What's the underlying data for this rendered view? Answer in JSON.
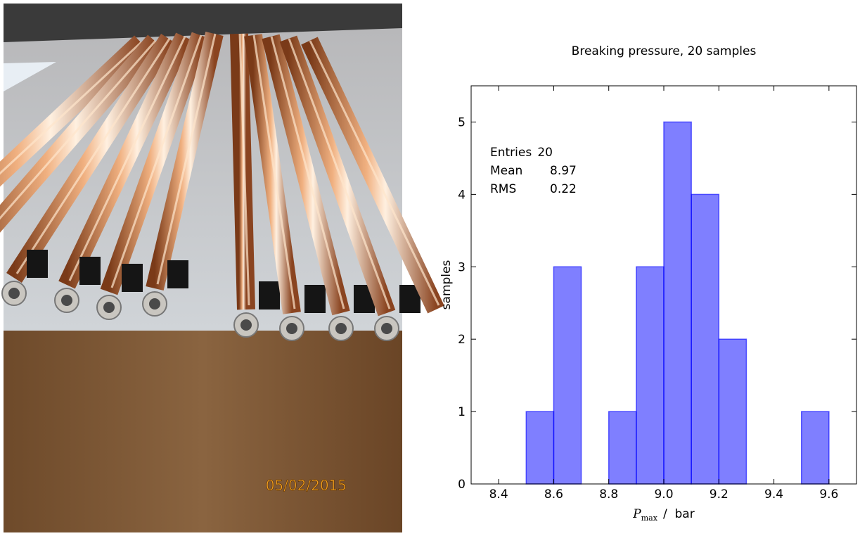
{
  "photo": {
    "date_stamp": "05/02/2015"
  },
  "chart_data": {
    "type": "histogram",
    "title": "Breaking pressure, 20 samples",
    "x_label": {
      "symbol": "P",
      "subscript": "max",
      "unit": "/  bar"
    },
    "y_label": "samples",
    "bins": [
      8.5,
      8.6,
      8.7,
      8.8,
      8.9,
      9.0,
      9.1,
      9.2,
      9.3,
      9.4,
      9.5,
      9.6
    ],
    "counts": [
      1,
      3,
      0,
      1,
      3,
      5,
      4,
      2,
      0,
      0,
      1
    ],
    "color": "#0000ff",
    "xlim": [
      8.3,
      9.7
    ],
    "xticks": [
      8.4,
      8.6,
      8.8,
      {
        "value": 9.0,
        "label": "9.0"
      },
      9.2,
      9.4,
      9.6
    ],
    "ylim": [
      0,
      5.5
    ],
    "yticks": [
      0,
      1,
      2,
      3,
      4,
      5
    ],
    "stats": [
      {
        "label": "Entries",
        "value": 20
      },
      {
        "label": "Mean",
        "value": 8.97
      },
      {
        "label": "RMS",
        "value": 0.22
      }
    ]
  }
}
